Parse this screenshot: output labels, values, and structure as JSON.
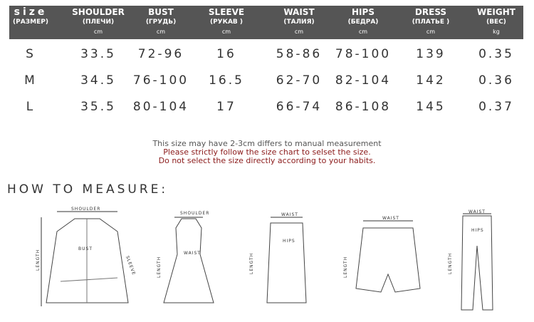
{
  "columns": [
    {
      "name": "size",
      "ru": "(РАЗМЕР)",
      "unit": ""
    },
    {
      "name": "SHOULDER",
      "ru": "(ПЛЕЧИ)",
      "unit": "cm"
    },
    {
      "name": "BUST",
      "ru": "(ГРУДЬ)",
      "unit": "cm"
    },
    {
      "name": "SLEEVE",
      "ru": "(РУКАВ )",
      "unit": "cm"
    },
    {
      "name": "WAIST",
      "ru": "(ТАЛИЯ)",
      "unit": "cm"
    },
    {
      "name": "HIPS",
      "ru": "(БЕДРА)",
      "unit": "cm"
    },
    {
      "name": "DRESS",
      "ru": "(ПЛАТЬЕ )",
      "unit": "cm"
    },
    {
      "name": "WEIGHT",
      "ru": "(ВЕС)",
      "unit": "kg"
    }
  ],
  "rows": [
    [
      "S",
      "33.5",
      "72-96",
      "16",
      "58-86",
      "78-100",
      "139",
      "0.35"
    ],
    [
      "M",
      "34.5",
      "76-100",
      "16.5",
      "62-70",
      "82-104",
      "142",
      "0.36"
    ],
    [
      "L",
      "35.5",
      "80-104",
      "17",
      "66-74",
      "86-108",
      "145",
      "0.37"
    ]
  ],
  "notes": {
    "line1": "This size may have 2-3cm differs to manual measurement",
    "line2": "Please strictly follow the size chart to selset the size.",
    "line3": "Do not select the size directly according to your habits."
  },
  "how_to_measure": "HOW TO MEASURE:",
  "labels": {
    "shoulder": "SHOULDER",
    "bust": "BUST",
    "length": "LENGTH",
    "sleeve": "SLEEVE",
    "waist": "WAIST",
    "hips": "HIPS"
  }
}
